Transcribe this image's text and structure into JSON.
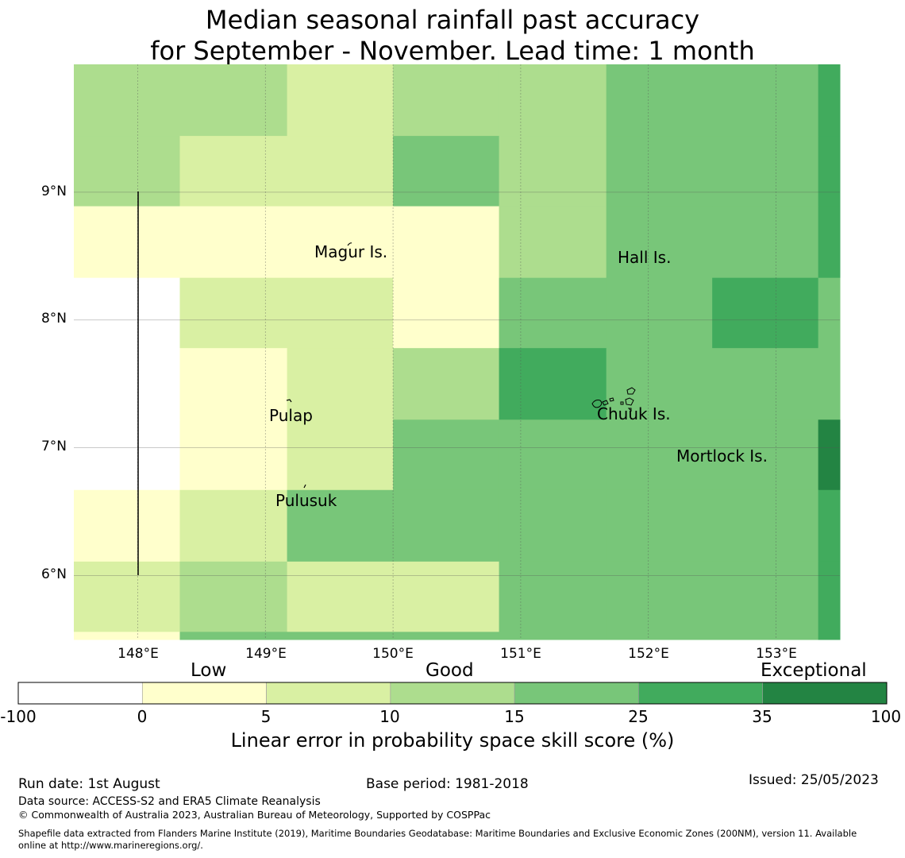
{
  "title_line1": "Median seasonal rainfall past accuracy",
  "title_line2": "for September - November. Lead time: 1 month",
  "map": {
    "lon_range": [
      147.5,
      153.5
    ],
    "lat_range": [
      5.5,
      10.0
    ],
    "lat_ticks": [
      {
        "value": 9,
        "label": "9°N"
      },
      {
        "value": 8,
        "label": "8°N"
      },
      {
        "value": 7,
        "label": "7°N"
      },
      {
        "value": 6,
        "label": "6°N"
      }
    ],
    "lon_ticks": [
      {
        "value": 148,
        "label": "148°E"
      },
      {
        "value": 149,
        "label": "149°E"
      },
      {
        "value": 150,
        "label": "150°E"
      },
      {
        "value": 151,
        "label": "151°E"
      },
      {
        "value": 152,
        "label": "152°E"
      },
      {
        "value": 153,
        "label": "153°E"
      }
    ],
    "places": [
      {
        "name": "Magur Is.",
        "lon": 149.6,
        "lat": 8.55
      },
      {
        "name": "Hall Is.",
        "lon": 151.95,
        "lat": 8.5
      },
      {
        "name": "Pulap",
        "lon": 149.2,
        "lat": 7.25
      },
      {
        "name": "Chuuk Is.",
        "lon": 151.85,
        "lat": 7.25
      },
      {
        "name": "Mortlock Is.",
        "lon": 152.6,
        "lat": 6.92
      },
      {
        "name": "Pulusuk",
        "lon": 149.33,
        "lat": 6.58
      }
    ],
    "grid_lon_edges": [
      147.5,
      148.33,
      149.17,
      150.0,
      150.83,
      151.67,
      152.5,
      153.33,
      153.5
    ],
    "grid_lat_edges": [
      10.0,
      9.44,
      8.89,
      8.33,
      7.78,
      7.22,
      6.67,
      6.11,
      5.56,
      5.5
    ],
    "grid_classes": [
      [
        3,
        3,
        2,
        3,
        3,
        4,
        4,
        5
      ],
      [
        3,
        2,
        2,
        4,
        3,
        4,
        4,
        5
      ],
      [
        1,
        1,
        1,
        1,
        3,
        4,
        4,
        5
      ],
      [
        0,
        2,
        2,
        1,
        4,
        4,
        5,
        4
      ],
      [
        0,
        1,
        2,
        3,
        5,
        4,
        4,
        4
      ],
      [
        0,
        1,
        2,
        4,
        4,
        4,
        4,
        6
      ],
      [
        1,
        2,
        4,
        4,
        4,
        4,
        4,
        5
      ],
      [
        2,
        3,
        2,
        2,
        4,
        4,
        4,
        5
      ],
      [
        1,
        4,
        4,
        4,
        4,
        4,
        4,
        5
      ]
    ]
  },
  "colorbar": {
    "categories": [
      "Low",
      "Good",
      "Exceptional"
    ],
    "ticks": [
      "-100",
      "0",
      "5",
      "10",
      "15",
      "25",
      "35",
      "100"
    ],
    "colors": [
      "#ffffff",
      "#ffffcc",
      "#d9f0a3",
      "#addd8e",
      "#78c679",
      "#41ab5d",
      "#238443"
    ],
    "title": "Linear error in probability space skill score (%)"
  },
  "footer": {
    "run_date": "Run date: 1st August",
    "base_period": "Base period: 1981-2018",
    "issued": "Issued: 25/05/2023",
    "data_source": "Data source: ACCESS-S2 and ERA5 Climate Reanalysis",
    "copyright": "© Commonwealth of Australia 2023, Australian Bureau of Meteorology, Supported by COSPPac",
    "shapefile_line1": "Shapefile data extracted from Flanders Marine Institute (2019), Maritime Boundaries Geodatabase: Maritime Boundaries and Exclusive Economic Zones (200NM), version 11. Available",
    "shapefile_line2": "online at http://www.marineregions.org/."
  }
}
